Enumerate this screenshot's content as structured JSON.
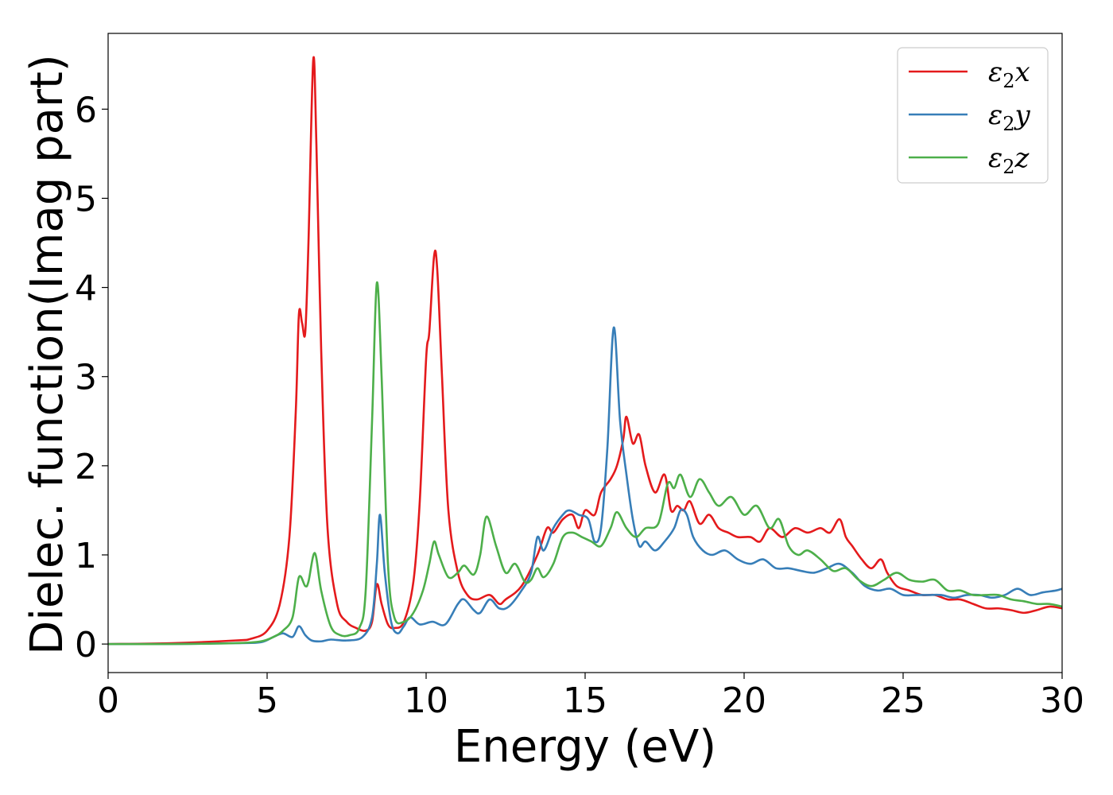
{
  "chart_data": {
    "type": "line",
    "title": "",
    "xlabel": "Energy (eV)",
    "ylabel": "Dielec. function(Imag part)",
    "xlim": [
      0,
      30
    ],
    "ylim": [
      -0.32,
      6.85
    ],
    "xticks": [
      0,
      5,
      10,
      15,
      20,
      25,
      30
    ],
    "yticks": [
      0,
      1,
      2,
      3,
      4,
      5,
      6
    ],
    "grid": false,
    "legend_position": "top-right",
    "series": [
      {
        "name": "ε2x",
        "legend": {
          "base": "ε",
          "sub": "2",
          "suffix": "x"
        },
        "color": "#e41a1c",
        "x": [
          0,
          2,
          4,
          4.5,
          5,
          5.4,
          5.7,
          5.9,
          6.0,
          6.1,
          6.2,
          6.3,
          6.45,
          6.55,
          6.7,
          6.9,
          7.2,
          7.5,
          7.8,
          8.1,
          8.3,
          8.45,
          8.6,
          8.8,
          9.0,
          9.3,
          9.6,
          9.8,
          10.0,
          10.1,
          10.25,
          10.35,
          10.5,
          10.7,
          11.0,
          11.3,
          11.6,
          12.0,
          12.3,
          12.5,
          13.0,
          13.5,
          13.8,
          14.0,
          14.3,
          14.6,
          14.8,
          15.0,
          15.3,
          15.5,
          15.8,
          16.0,
          16.2,
          16.3,
          16.5,
          16.7,
          16.9,
          17.2,
          17.5,
          17.7,
          17.9,
          18.1,
          18.3,
          18.6,
          18.9,
          19.2,
          19.5,
          19.8,
          20.2,
          20.5,
          20.8,
          21.2,
          21.6,
          22.0,
          22.4,
          22.7,
          23.0,
          23.2,
          23.4,
          23.7,
          24.0,
          24.3,
          24.5,
          24.8,
          25.2,
          25.6,
          26.0,
          26.4,
          26.8,
          27.2,
          27.6,
          28.0,
          28.4,
          28.8,
          29.2,
          29.6,
          30.0
        ],
        "y": [
          0,
          0.01,
          0.04,
          0.06,
          0.15,
          0.45,
          1.2,
          2.6,
          3.7,
          3.6,
          3.5,
          4.5,
          6.55,
          5.6,
          3.3,
          1.3,
          0.45,
          0.25,
          0.18,
          0.15,
          0.25,
          0.67,
          0.45,
          0.22,
          0.18,
          0.25,
          0.7,
          1.6,
          3.2,
          3.5,
          4.35,
          4.2,
          3.0,
          1.5,
          0.8,
          0.55,
          0.5,
          0.55,
          0.45,
          0.5,
          0.65,
          1.0,
          1.3,
          1.25,
          1.4,
          1.45,
          1.3,
          1.5,
          1.45,
          1.7,
          1.85,
          2.0,
          2.3,
          2.55,
          2.25,
          2.35,
          2.0,
          1.7,
          1.9,
          1.5,
          1.55,
          1.5,
          1.6,
          1.35,
          1.45,
          1.3,
          1.25,
          1.2,
          1.2,
          1.15,
          1.3,
          1.2,
          1.3,
          1.25,
          1.3,
          1.25,
          1.4,
          1.2,
          1.1,
          0.95,
          0.85,
          0.95,
          0.8,
          0.65,
          0.6,
          0.55,
          0.55,
          0.5,
          0.5,
          0.45,
          0.4,
          0.4,
          0.38,
          0.35,
          0.38,
          0.42,
          0.4
        ]
      },
      {
        "name": "ε2y",
        "legend": {
          "base": "ε",
          "sub": "2",
          "suffix": "y"
        },
        "color": "#377eb8",
        "x": [
          0,
          2,
          4,
          4.8,
          5.2,
          5.5,
          5.8,
          6.0,
          6.2,
          6.4,
          6.7,
          7.0,
          7.5,
          8.0,
          8.3,
          8.45,
          8.55,
          8.7,
          8.9,
          9.1,
          9.3,
          9.5,
          9.8,
          10.2,
          10.6,
          11.0,
          11.2,
          11.5,
          11.7,
          12.0,
          12.3,
          12.6,
          13.0,
          13.3,
          13.5,
          13.7,
          14.0,
          14.3,
          14.5,
          14.8,
          15.1,
          15.3,
          15.5,
          15.7,
          15.9,
          16.1,
          16.3,
          16.5,
          16.7,
          16.9,
          17.2,
          17.5,
          17.8,
          18.0,
          18.2,
          18.4,
          18.7,
          19.0,
          19.4,
          19.8,
          20.2,
          20.6,
          21.0,
          21.4,
          21.8,
          22.2,
          22.6,
          23.0,
          23.4,
          23.8,
          24.2,
          24.6,
          25.0,
          25.4,
          25.8,
          26.2,
          26.6,
          27.0,
          27.4,
          27.8,
          28.2,
          28.6,
          29.0,
          29.4,
          29.8,
          30.0
        ],
        "y": [
          0,
          0.0,
          0.01,
          0.02,
          0.08,
          0.12,
          0.08,
          0.2,
          0.1,
          0.04,
          0.03,
          0.05,
          0.04,
          0.08,
          0.3,
          0.9,
          1.45,
          0.8,
          0.25,
          0.12,
          0.2,
          0.3,
          0.22,
          0.25,
          0.22,
          0.45,
          0.5,
          0.38,
          0.35,
          0.5,
          0.4,
          0.42,
          0.6,
          0.8,
          1.2,
          1.05,
          1.3,
          1.45,
          1.5,
          1.45,
          1.4,
          1.15,
          1.3,
          2.2,
          3.55,
          2.5,
          1.9,
          1.4,
          1.1,
          1.15,
          1.05,
          1.15,
          1.3,
          1.5,
          1.45,
          1.2,
          1.05,
          1.0,
          1.05,
          0.95,
          0.9,
          0.95,
          0.85,
          0.85,
          0.82,
          0.8,
          0.85,
          0.9,
          0.8,
          0.65,
          0.6,
          0.62,
          0.55,
          0.55,
          0.55,
          0.55,
          0.52,
          0.55,
          0.55,
          0.52,
          0.55,
          0.62,
          0.55,
          0.58,
          0.6,
          0.62
        ]
      },
      {
        "name": "ε2z",
        "legend": {
          "base": "ε",
          "sub": "2",
          "suffix": "z"
        },
        "color": "#4daf4a",
        "x": [
          0,
          2,
          4,
          4.8,
          5.2,
          5.5,
          5.8,
          6.0,
          6.2,
          6.3,
          6.5,
          6.7,
          7.0,
          7.3,
          7.6,
          7.9,
          8.1,
          8.3,
          8.45,
          8.6,
          8.8,
          9.0,
          9.3,
          9.6,
          9.9,
          10.1,
          10.25,
          10.4,
          10.7,
          11.0,
          11.2,
          11.5,
          11.7,
          11.9,
          12.2,
          12.5,
          12.8,
          13.1,
          13.3,
          13.5,
          13.7,
          14.0,
          14.3,
          14.6,
          14.9,
          15.2,
          15.5,
          15.8,
          16.0,
          16.3,
          16.6,
          16.9,
          17.3,
          17.6,
          17.8,
          18.0,
          18.3,
          18.6,
          18.9,
          19.2,
          19.6,
          20.0,
          20.4,
          20.8,
          21.1,
          21.4,
          21.7,
          22.0,
          22.4,
          22.8,
          23.2,
          23.6,
          24.0,
          24.4,
          24.8,
          25.2,
          25.6,
          26.0,
          26.4,
          26.8,
          27.2,
          27.6,
          28.0,
          28.4,
          28.8,
          29.2,
          29.6,
          30.0
        ],
        "y": [
          0,
          0.0,
          0.01,
          0.03,
          0.08,
          0.15,
          0.3,
          0.75,
          0.65,
          0.7,
          1.02,
          0.6,
          0.2,
          0.1,
          0.1,
          0.18,
          0.6,
          2.5,
          4.05,
          3.0,
          0.9,
          0.3,
          0.25,
          0.35,
          0.6,
          0.9,
          1.15,
          1.0,
          0.75,
          0.8,
          0.88,
          0.78,
          1.0,
          1.43,
          1.1,
          0.8,
          0.9,
          0.7,
          0.72,
          0.85,
          0.75,
          0.9,
          1.2,
          1.25,
          1.2,
          1.15,
          1.1,
          1.3,
          1.48,
          1.3,
          1.2,
          1.3,
          1.35,
          1.8,
          1.75,
          1.9,
          1.65,
          1.85,
          1.7,
          1.55,
          1.65,
          1.45,
          1.55,
          1.3,
          1.4,
          1.1,
          1.0,
          1.05,
          0.95,
          0.82,
          0.85,
          0.72,
          0.65,
          0.72,
          0.8,
          0.72,
          0.7,
          0.72,
          0.6,
          0.6,
          0.55,
          0.55,
          0.55,
          0.5,
          0.48,
          0.45,
          0.45,
          0.42
        ]
      }
    ]
  }
}
